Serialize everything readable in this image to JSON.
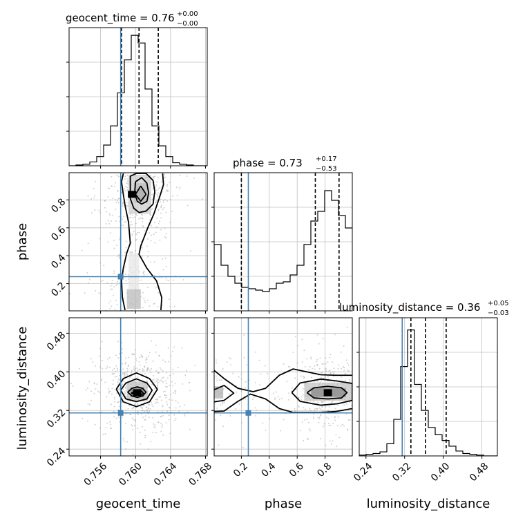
{
  "chart_data": {
    "type": "corner",
    "parameters": [
      "geocent_time",
      "phase",
      "luminosity_distance"
    ],
    "injection": {
      "geocent_time": 0.7583,
      "phase": 0.25,
      "luminosity_distance": 0.315
    },
    "colors": {
      "truth": "#4682b4",
      "hist": "#000000",
      "grid": "#c0c0c0",
      "points": "#999999"
    },
    "grid": true,
    "axes_ranges": {
      "geocent_time": [
        0.7524,
        0.7682
      ],
      "phase": [
        0.005,
        0.995
      ],
      "luminosity_distance": [
        0.226,
        0.512
      ]
    },
    "ticks": {
      "geocent_time": {
        "values": [
          0.756,
          0.76,
          0.764,
          0.768
        ],
        "labels": [
          "0.756",
          "0.760",
          "0.764",
          "0.768"
        ]
      },
      "phase": {
        "values": [
          0.2,
          0.4,
          0.6,
          0.8
        ],
        "labels": [
          "0.2",
          "0.4",
          "0.6",
          "0.8"
        ]
      },
      "luminosity_distance": {
        "values": [
          0.24,
          0.32,
          0.4,
          0.48
        ],
        "labels": [
          "0.24",
          "0.32",
          "0.40",
          "0.48"
        ]
      }
    },
    "diagonals": [
      {
        "param": "geocent_time",
        "title_prefix": "geocent_time = 0.76",
        "title_sup": "+0.00",
        "title_sub": "−0.00",
        "quantiles": [
          0.7584,
          0.7604,
          0.7626
        ],
        "hist_range": [
          0.7524,
          0.7682
        ],
        "hist_values": [
          0,
          1,
          2,
          5,
          12,
          27,
          52,
          95,
          138,
          170,
          160,
          100,
          52,
          26,
          12,
          4,
          2,
          1,
          0,
          0
        ],
        "hist_max": 180
      },
      {
        "param": "phase",
        "title_prefix": "phase = 0.73",
        "title_sup": "+0.17",
        "title_sub": "−0.53",
        "quantiles": [
          0.2,
          0.73,
          0.9
        ],
        "hist_range": [
          0.005,
          0.995
        ],
        "hist_values": [
          48,
          33,
          25,
          20,
          17,
          16,
          15,
          14,
          16,
          20,
          21,
          26,
          33,
          48,
          65,
          72,
          87,
          80,
          69,
          60
        ],
        "hist_max": 100
      },
      {
        "param": "luminosity_distance",
        "title_prefix": "luminosity_distance = 0.36",
        "title_sup": "+0.05",
        "title_sub": "−0.03",
        "quantiles": [
          0.333,
          0.363,
          0.406
        ],
        "hist_range": [
          0.226,
          0.512
        ],
        "hist_values": [
          1,
          2,
          3,
          5,
          15,
          45,
          110,
          155,
          88,
          56,
          35,
          26,
          19,
          12,
          6,
          3,
          2,
          1,
          0,
          0
        ],
        "hist_max": 170
      }
    ],
    "joints": [
      {
        "x": "geocent_time",
        "y": "phase",
        "contours": [
          [
            [
              0.7586,
              0.99
            ],
            [
              0.7584,
              0.93
            ],
            [
              0.7586,
              0.84
            ],
            [
              0.7588,
              0.76
            ],
            [
              0.7592,
              0.64
            ],
            [
              0.7594,
              0.49
            ],
            [
              0.759,
              0.42
            ],
            [
              0.7586,
              0.31
            ],
            [
              0.7584,
              0.22
            ],
            [
              0.7585,
              0.1
            ],
            [
              0.7588,
              0.01
            ]
          ],
          [
            [
              0.7631,
              0.99
            ],
            [
              0.7632,
              0.91
            ],
            [
              0.7627,
              0.81
            ],
            [
              0.7621,
              0.7
            ],
            [
              0.7614,
              0.6
            ],
            [
              0.7606,
              0.47
            ],
            [
              0.7604,
              0.41
            ],
            [
              0.7613,
              0.31
            ],
            [
              0.7624,
              0.22
            ],
            [
              0.763,
              0.1
            ],
            [
              0.7629,
              0.01
            ]
          ],
          [
            [
              0.7594,
              0.97
            ],
            [
              0.7594,
              0.88
            ],
            [
              0.7594,
              0.81
            ],
            [
              0.7598,
              0.74
            ],
            [
              0.7604,
              0.71
            ],
            [
              0.7612,
              0.72
            ],
            [
              0.762,
              0.77
            ],
            [
              0.7622,
              0.86
            ],
            [
              0.762,
              0.94
            ],
            [
              0.7612,
              0.99
            ],
            [
              0.7601,
              0.99
            ],
            [
              0.7594,
              0.97
            ]
          ],
          [
            [
              0.76,
              0.93
            ],
            [
              0.7599,
              0.85
            ],
            [
              0.7602,
              0.79
            ],
            [
              0.7607,
              0.77
            ],
            [
              0.7613,
              0.79
            ],
            [
              0.7615,
              0.85
            ],
            [
              0.7613,
              0.92
            ],
            [
              0.7607,
              0.96
            ],
            [
              0.76,
              0.93
            ]
          ],
          [
            [
              0.7606,
              0.9
            ],
            [
              0.76,
              0.84
            ],
            [
              0.7606,
              0.79
            ],
            [
              0.7612,
              0.84
            ],
            [
              0.7606,
              0.9
            ]
          ]
        ],
        "density": [
          {
            "x": [
              0.7598,
              0.7614
            ],
            "y": [
              0.78,
              0.92
            ],
            "level": 0.55
          },
          {
            "x": [
              0.7602,
              0.761
            ],
            "y": [
              0.8,
              0.88
            ],
            "level": 0.85
          },
          {
            "x": [
              0.7592,
              0.7618
            ],
            "y": [
              0.7,
              0.98
            ],
            "level": 0.25
          },
          {
            "x": [
              0.759,
              0.7606
            ],
            "y": [
              0.02,
              0.16
            ],
            "level": 0.35
          },
          {
            "x": [
              0.7592,
              0.7604
            ],
            "y": [
              0.16,
              0.42
            ],
            "level": 0.12
          }
        ],
        "core": [
          {
            "cx": 0.7596,
            "cy": 0.84,
            "level": 0.95
          }
        ]
      },
      {
        "x": "geocent_time",
        "y": "luminosity_distance",
        "contours": [
          [
            [
              0.7578,
              0.364
            ],
            [
              0.7586,
              0.386
            ],
            [
              0.7601,
              0.3978
            ],
            [
              0.7616,
              0.386
            ],
            [
              0.7625,
              0.364
            ],
            [
              0.7616,
              0.338
            ],
            [
              0.7601,
              0.328
            ],
            [
              0.7586,
              0.338
            ],
            [
              0.7578,
              0.364
            ]
          ],
          [
            [
              0.7583,
              0.362
            ],
            [
              0.7589,
              0.377
            ],
            [
              0.7601,
              0.3855
            ],
            [
              0.7613,
              0.377
            ],
            [
              0.7619,
              0.362
            ],
            [
              0.7613,
              0.344
            ],
            [
              0.7601,
              0.3385
            ],
            [
              0.7589,
              0.344
            ],
            [
              0.7583,
              0.362
            ]
          ],
          [
            [
              0.7591,
              0.358
            ],
            [
              0.7596,
              0.366
            ],
            [
              0.7602,
              0.369
            ],
            [
              0.7608,
              0.366
            ],
            [
              0.7612,
              0.358
            ],
            [
              0.7608,
              0.35
            ],
            [
              0.7602,
              0.347
            ],
            [
              0.7596,
              0.35
            ],
            [
              0.7591,
              0.358
            ]
          ],
          [
            [
              0.7595,
              0.356
            ],
            [
              0.7599,
              0.36
            ],
            [
              0.7603,
              0.361
            ],
            [
              0.7607,
              0.36
            ],
            [
              0.7609,
              0.356
            ],
            [
              0.7607,
              0.353
            ],
            [
              0.7603,
              0.352
            ],
            [
              0.7599,
              0.353
            ],
            [
              0.7595,
              0.356
            ]
          ]
        ],
        "density": [
          {
            "x": [
              0.759,
              0.7614
            ],
            "y": [
              0.34,
              0.38
            ],
            "level": 0.3
          },
          {
            "x": [
              0.7594,
              0.761
            ],
            "y": [
              0.348,
              0.368
            ],
            "level": 0.6
          }
        ],
        "core": [
          {
            "cx": 0.7602,
            "cy": 0.357,
            "level": 0.95
          }
        ]
      },
      {
        "x": "phase",
        "y": "luminosity_distance",
        "contours": [
          [
            [
              0.005,
              0.403
            ],
            [
              0.0765,
              0.386
            ],
            [
              0.1755,
              0.366
            ],
            [
              0.2844,
              0.359
            ],
            [
              0.3735,
              0.366
            ],
            [
              0.4725,
              0.393
            ],
            [
              0.5715,
              0.406
            ],
            [
              0.6705,
              0.4
            ],
            [
              0.7695,
              0.394
            ],
            [
              0.8784,
              0.393
            ],
            [
              0.995,
              0.393
            ]
          ],
          [
            [
              0.005,
              0.318
            ],
            [
              0.0765,
              0.319
            ],
            [
              0.1755,
              0.339
            ],
            [
              0.2646,
              0.354
            ],
            [
              0.3735,
              0.344
            ],
            [
              0.4725,
              0.324
            ],
            [
              0.5715,
              0.316
            ],
            [
              0.6705,
              0.316
            ],
            [
              0.7695,
              0.316
            ],
            [
              0.8784,
              0.318
            ],
            [
              0.995,
              0.324
            ]
          ],
          [
            [
              0.005,
              0.363
            ],
            [
              0.0765,
              0.372
            ],
            [
              0.1458,
              0.356
            ],
            [
              0.0765,
              0.341
            ],
            [
              0.005,
              0.338
            ]
          ],
          [
            [
              0.5616,
              0.357
            ],
            [
              0.621,
              0.377
            ],
            [
              0.7695,
              0.385
            ],
            [
              0.8883,
              0.381
            ],
            [
              0.995,
              0.376
            ],
            [
              0.995,
              0.341
            ],
            [
              0.8883,
              0.334
            ],
            [
              0.7695,
              0.331
            ],
            [
              0.621,
              0.339
            ],
            [
              0.5616,
              0.357
            ]
          ],
          [
            [
              0.6705,
              0.357
            ],
            [
              0.72,
              0.367
            ],
            [
              0.819,
              0.37
            ],
            [
              0.918,
              0.367
            ],
            [
              0.9576,
              0.357
            ],
            [
              0.918,
              0.346
            ],
            [
              0.819,
              0.344
            ],
            [
              0.72,
              0.346
            ],
            [
              0.6705,
              0.357
            ]
          ]
        ],
        "density": [
          {
            "x": [
              0.65,
              0.995
            ],
            "y": [
              0.34,
              0.378
            ],
            "level": 0.3
          },
          {
            "x": [
              0.7,
              0.95
            ],
            "y": [
              0.348,
              0.366
            ],
            "level": 0.6
          },
          {
            "x": [
              0.005,
              0.07
            ],
            "y": [
              0.345,
              0.37
            ],
            "level": 0.4
          }
        ],
        "core": [
          {
            "cx": 0.82,
            "cy": 0.357,
            "level": 0.95
          }
        ]
      }
    ]
  }
}
